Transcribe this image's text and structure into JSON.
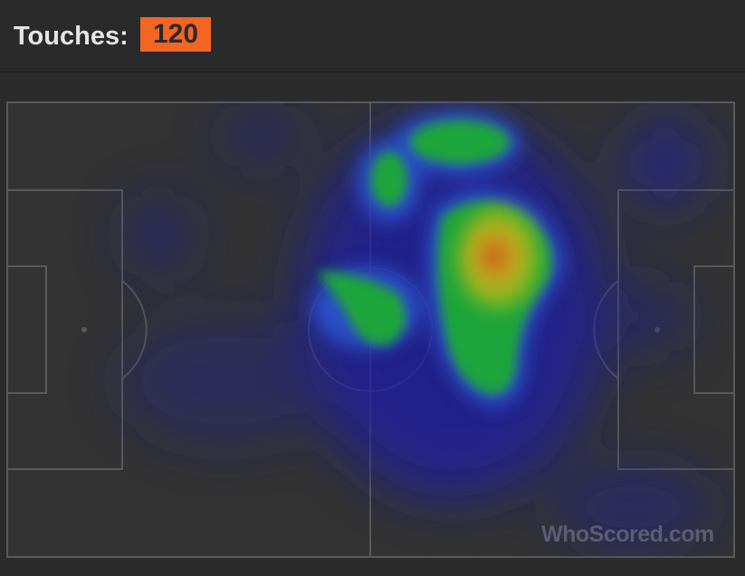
{
  "header": {
    "label": "Touches:",
    "count": "120"
  },
  "watermark": "WhoScored.com",
  "colors": {
    "accent": "#f26522",
    "background": "#2b2b2b",
    "pitch": "#333333",
    "lines": "#5a5a5a"
  },
  "heatmap": {
    "type": "touch-heatmap",
    "scale": [
      "blue",
      "green",
      "yellow",
      "orange",
      "red"
    ]
  }
}
